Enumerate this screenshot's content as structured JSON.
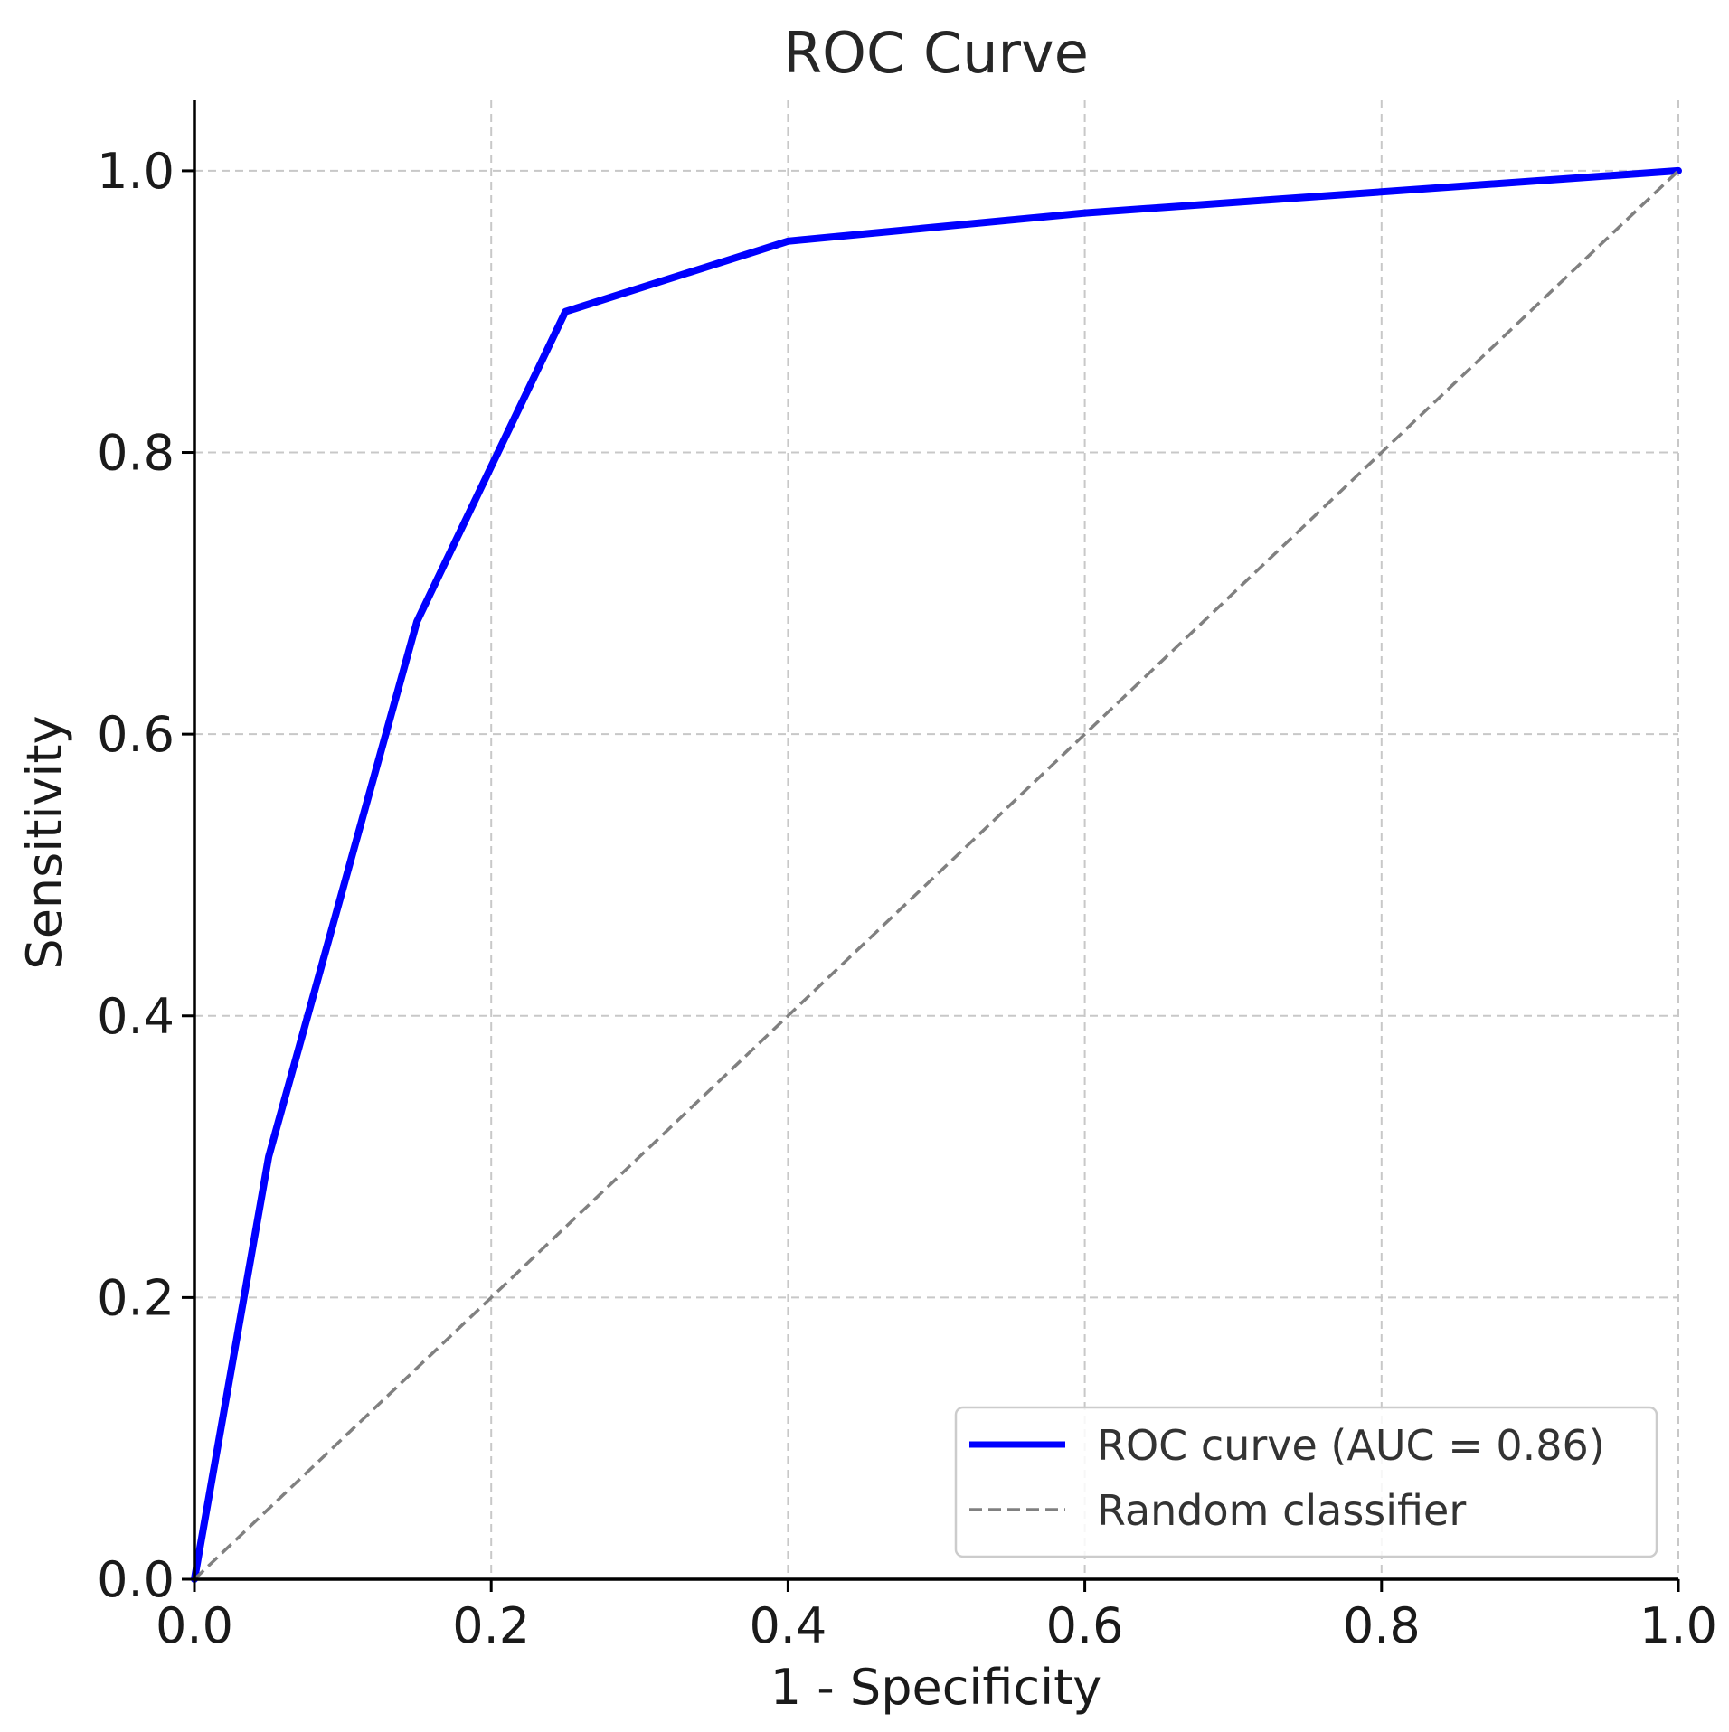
{
  "chart_data": {
    "type": "line",
    "title": "ROC Curve",
    "xlabel": "1 - Specificity",
    "ylabel": "Sensitivity",
    "xlim": [
      0.0,
      1.0
    ],
    "ylim": [
      0.0,
      1.05
    ],
    "xticks": [
      "0.0",
      "0.2",
      "0.4",
      "0.6",
      "0.8",
      "1.0"
    ],
    "yticks": [
      "0.0",
      "0.2",
      "0.4",
      "0.6",
      "0.8",
      "1.0"
    ],
    "xtick_values": [
      0.0,
      0.2,
      0.4,
      0.6,
      0.8,
      1.0
    ],
    "ytick_values": [
      0.0,
      0.2,
      0.4,
      0.6,
      0.8,
      1.0
    ],
    "grid": true,
    "legend_position": "bottom-right",
    "series": [
      {
        "name": "ROC curve (AUC = 0.86)",
        "color": "#0000ff",
        "style": "solid",
        "x": [
          0.0,
          0.05,
          0.15,
          0.25,
          0.4,
          0.6,
          1.0
        ],
        "y": [
          0.0,
          0.3,
          0.68,
          0.9,
          0.95,
          0.97,
          1.0
        ]
      },
      {
        "name": "Random classifier",
        "color": "#808080",
        "style": "dashed",
        "x": [
          0.0,
          1.0
        ],
        "y": [
          0.0,
          1.0
        ]
      }
    ]
  }
}
